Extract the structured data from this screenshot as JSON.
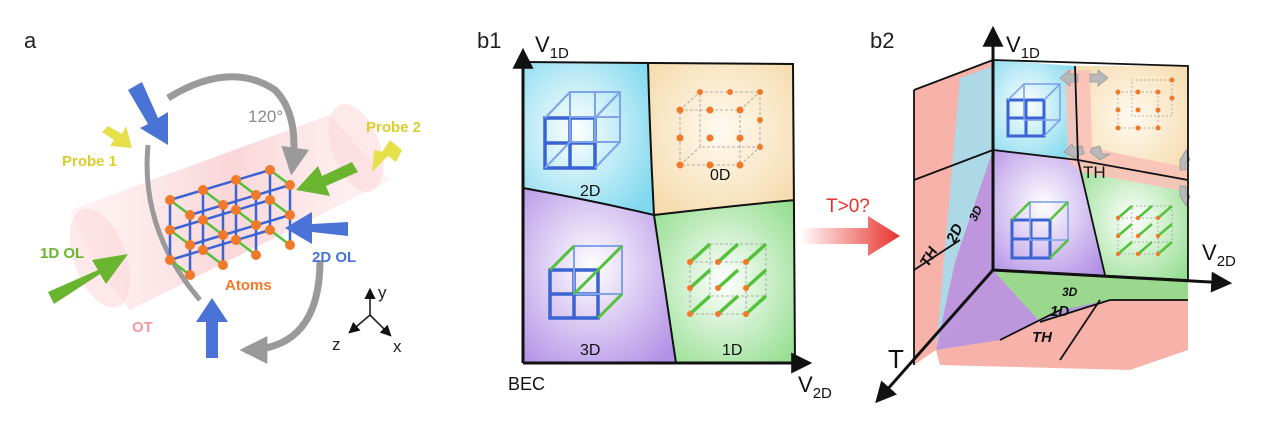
{
  "panel_a": {
    "letter": "a",
    "angle_label": "120°",
    "probe1": "Probe 1",
    "probe2": "Probe 2",
    "ol_1d": "1D OL",
    "ol_2d": "2D OL",
    "atoms": "Atoms",
    "ot": "OT",
    "axis_x": "x",
    "axis_y": "y",
    "axis_z": "z",
    "colors": {
      "green_beam": "#6ab530",
      "blue_beam": "#4a73d8",
      "probe": "#e6e04a",
      "atom": "#f07a2a",
      "ot": "#f8c9cc"
    }
  },
  "panel_b1": {
    "letter": "b1",
    "y_axis": {
      "main": "V",
      "sub": "1D"
    },
    "x_axis": {
      "main": "V",
      "sub": "2D"
    },
    "origin_label": "BEC",
    "regions": {
      "top_left": "2D",
      "top_right": "0D",
      "bottom_left": "3D",
      "bottom_right": "1D"
    },
    "colors": {
      "2D": "#7fd8ee",
      "0D": "#f5d9a8",
      "3D": "#b391e6",
      "1D": "#8fdc8a"
    }
  },
  "transition": {
    "label": "T>0?",
    "color": "#e8312a"
  },
  "panel_b2": {
    "letter": "b2",
    "y_axis": {
      "main": "V",
      "sub": "1D"
    },
    "x_axis": {
      "main": "V",
      "sub": "2D"
    },
    "t_axis": "T",
    "th_label": "TH",
    "left_face": {
      "th": "TH",
      "d2": "2D",
      "d3": "3D"
    },
    "bottom_face": {
      "d3": "3D",
      "d1": "1D",
      "th": "TH"
    }
  }
}
